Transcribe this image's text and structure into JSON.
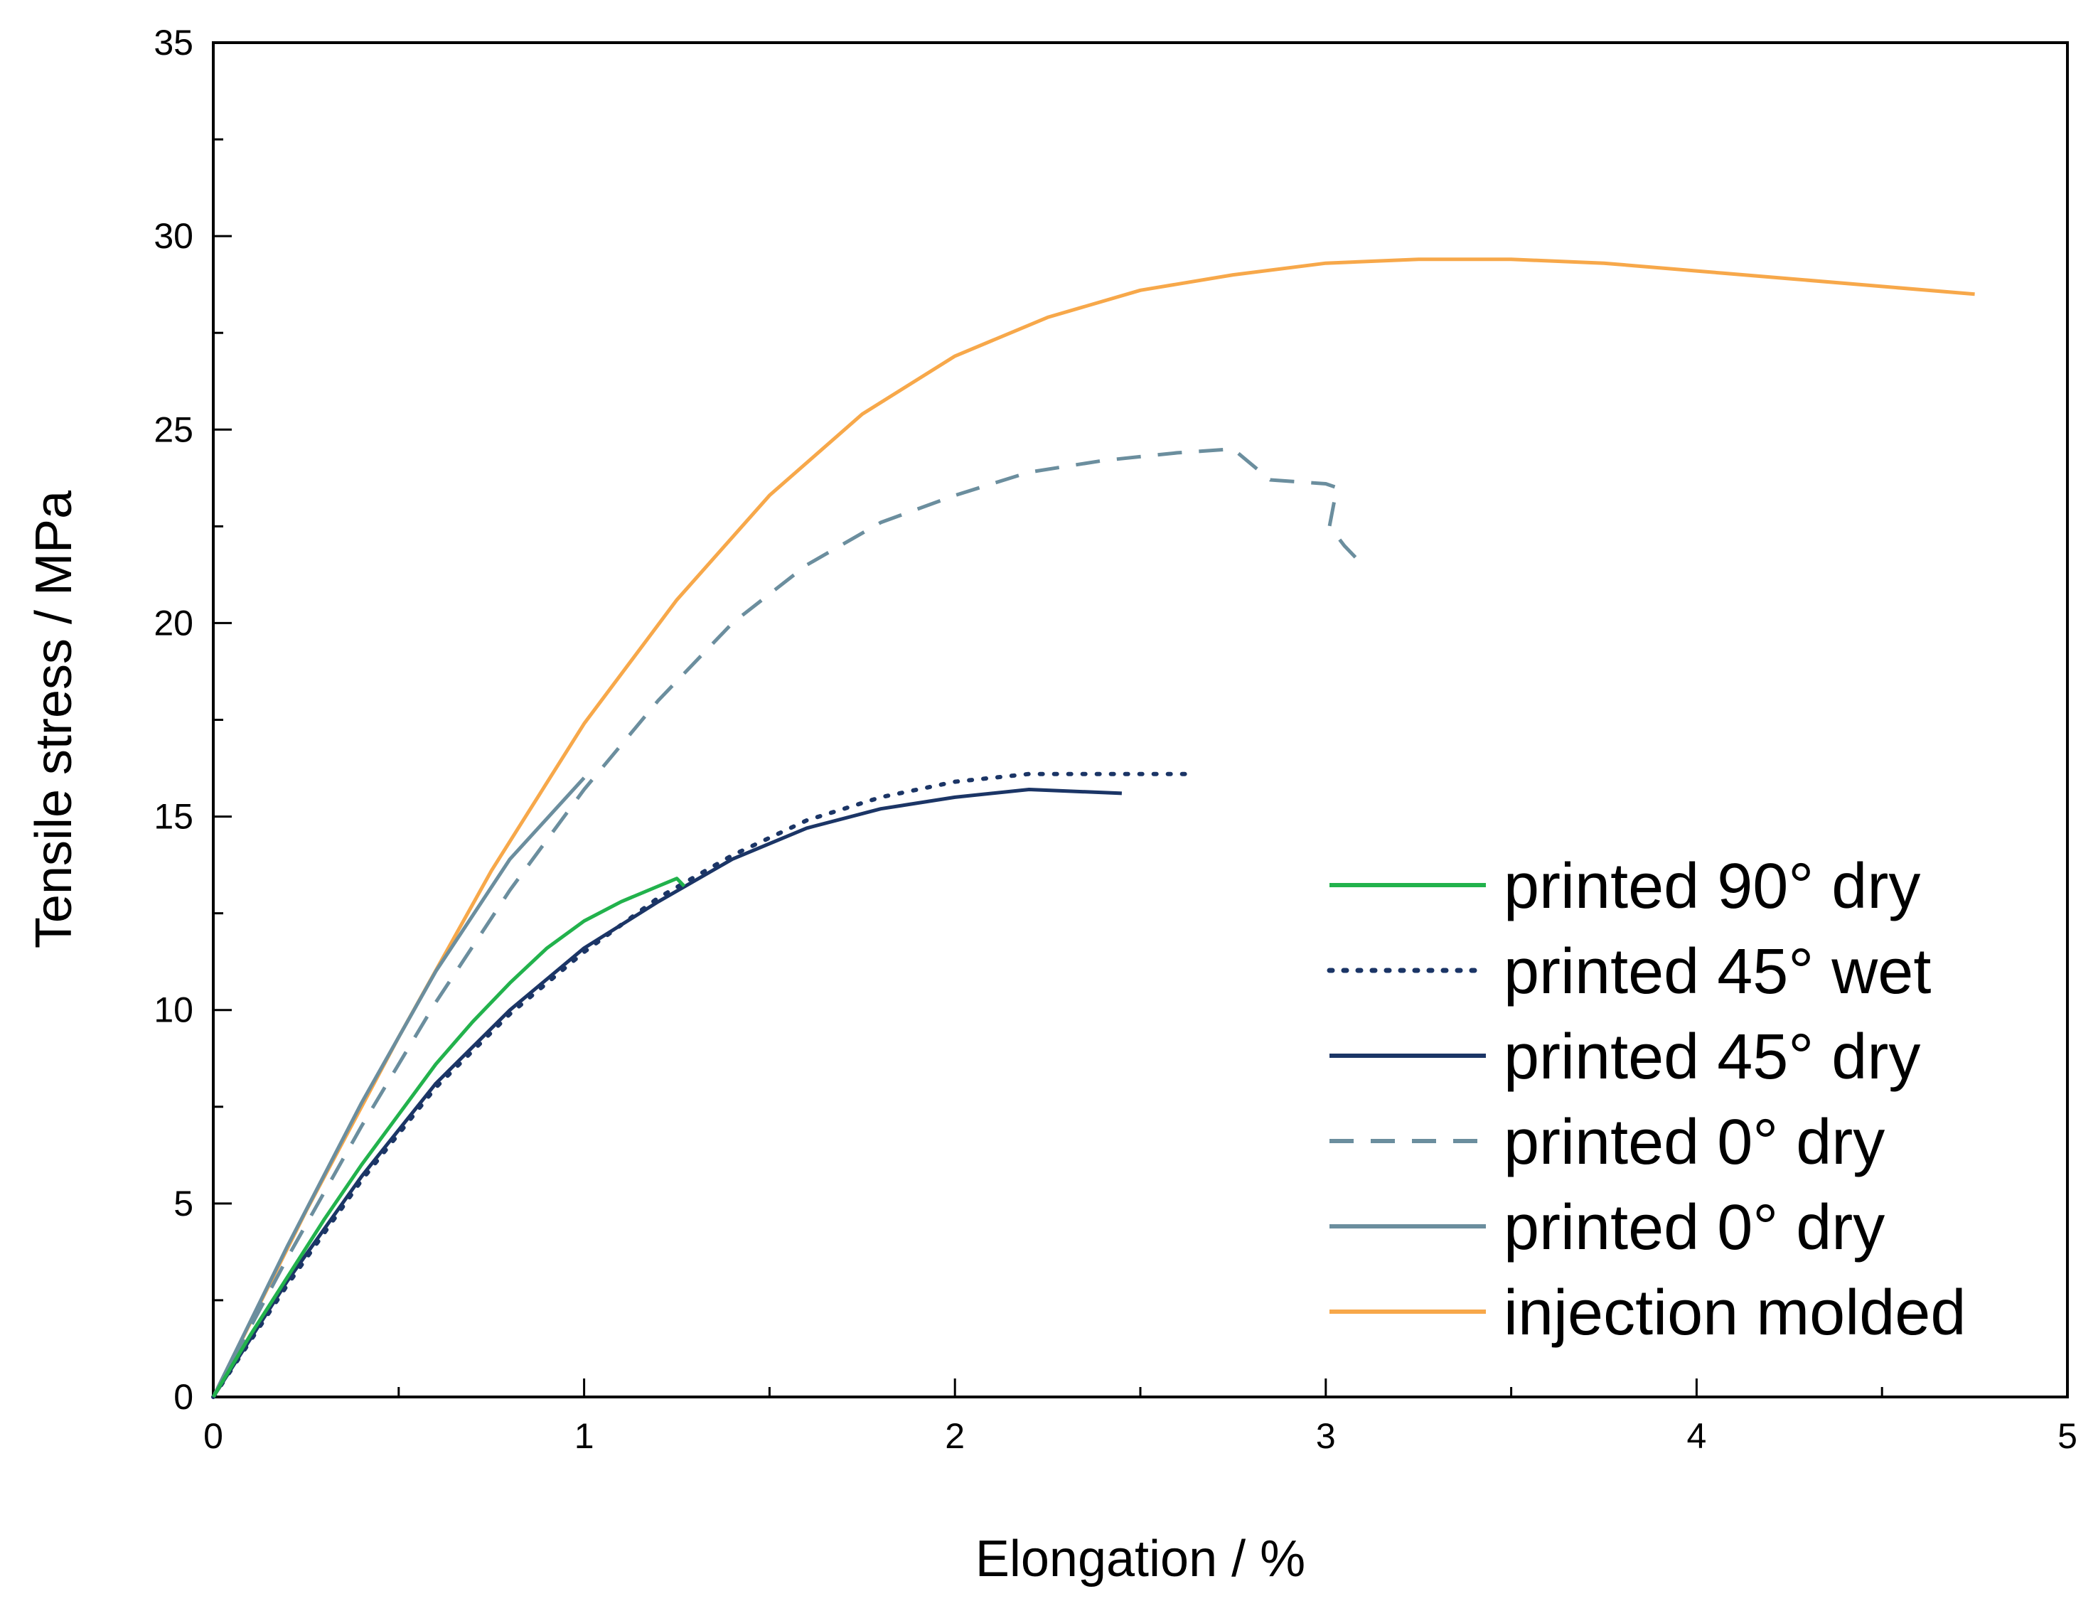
{
  "chart_data": {
    "type": "line",
    "title": "",
    "xlabel": "Elongation / %",
    "ylabel": "Tensile stress / MPa",
    "xlim": [
      0,
      5
    ],
    "ylim": [
      0,
      35
    ],
    "xticks": [
      0,
      1,
      2,
      3,
      4,
      5
    ],
    "yticks": [
      0,
      5,
      10,
      15,
      20,
      25,
      30,
      35
    ],
    "grid": false,
    "legend_position": "bottom-right",
    "series": [
      {
        "name": "printed 90° dry",
        "color": "#22b24c",
        "style": "solid",
        "x": [
          0,
          0.1,
          0.2,
          0.3,
          0.4,
          0.5,
          0.6,
          0.7,
          0.8,
          0.9,
          1.0,
          1.1,
          1.2,
          1.25,
          1.27
        ],
        "y": [
          0,
          1.6,
          3.1,
          4.6,
          6.0,
          7.3,
          8.6,
          9.7,
          10.7,
          11.6,
          12.3,
          12.8,
          13.2,
          13.4,
          13.2
        ]
      },
      {
        "name": "printed 45° wet",
        "color": "#1b3566",
        "style": "dotted",
        "x": [
          0,
          0.2,
          0.4,
          0.6,
          0.8,
          1.0,
          1.2,
          1.4,
          1.6,
          1.8,
          2.0,
          2.2,
          2.4,
          2.6,
          2.62
        ],
        "y": [
          0,
          2.9,
          5.6,
          8.0,
          9.9,
          11.5,
          12.9,
          14.0,
          14.9,
          15.5,
          15.9,
          16.1,
          16.1,
          16.1,
          16.1
        ]
      },
      {
        "name": "printed 45° dry",
        "color": "#1b3566",
        "style": "solid",
        "x": [
          0,
          0.2,
          0.4,
          0.6,
          0.8,
          1.0,
          1.2,
          1.4,
          1.6,
          1.8,
          2.0,
          2.2,
          2.45
        ],
        "y": [
          0,
          3.0,
          5.7,
          8.1,
          10.0,
          11.6,
          12.8,
          13.9,
          14.7,
          15.2,
          15.5,
          15.7,
          15.6
        ]
      },
      {
        "name": "printed 0° dry",
        "color": "#6b8e9e",
        "style": "dashed",
        "x": [
          0,
          0.2,
          0.4,
          0.6,
          0.8,
          1.0,
          1.2,
          1.4,
          1.6,
          1.8,
          2.0,
          2.2,
          2.4,
          2.6,
          2.75,
          2.85,
          3.0,
          3.03,
          3.01,
          3.05,
          3.08
        ],
        "y": [
          0,
          3.6,
          7.0,
          10.2,
          13.1,
          15.7,
          18.0,
          20.0,
          21.5,
          22.6,
          23.3,
          23.9,
          24.2,
          24.4,
          24.5,
          23.7,
          23.6,
          23.5,
          22.5,
          22.0,
          21.7
        ]
      },
      {
        "name": "printed 0° dry",
        "color": "#6b8e9e",
        "style": "solid",
        "x": [
          0,
          0.2,
          0.4,
          0.6,
          0.8,
          1.0
        ],
        "y": [
          0,
          3.9,
          7.6,
          11.0,
          13.9,
          16.0
        ]
      },
      {
        "name": "injection molded",
        "color": "#f7a84a",
        "style": "solid",
        "x": [
          0,
          0.25,
          0.5,
          0.75,
          1.0,
          1.25,
          1.5,
          1.75,
          2.0,
          2.25,
          2.5,
          2.75,
          3.0,
          3.25,
          3.5,
          3.75,
          4.0,
          4.25,
          4.5,
          4.75
        ],
        "y": [
          0,
          4.8,
          9.3,
          13.6,
          17.4,
          20.6,
          23.3,
          25.4,
          26.9,
          27.9,
          28.6,
          29.0,
          29.3,
          29.4,
          29.4,
          29.3,
          29.1,
          28.9,
          28.7,
          28.5
        ]
      }
    ]
  }
}
